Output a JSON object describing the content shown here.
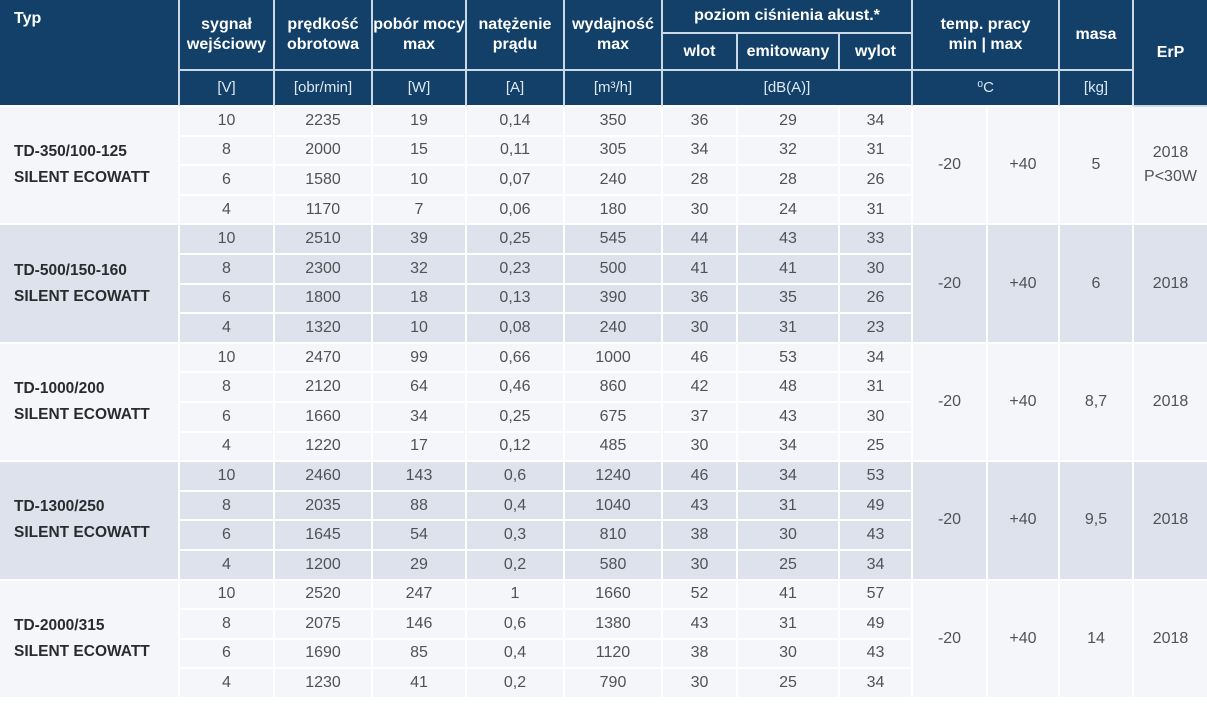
{
  "table": {
    "header": {
      "typ": "Typ",
      "signal": "sygnał wejściowy",
      "speed": "prędkość obrotowa",
      "power": "pobór mocy max",
      "current": "natężenie prądu",
      "airflow": "wydajność max",
      "acoustic": "poziom ciśnienia akust.*",
      "acoustic_sub": [
        "wlot",
        "emitowany",
        "wylot"
      ],
      "temp_line1": "temp. pracy",
      "temp_line2": "min | max",
      "masa": "masa",
      "erp": "ErP"
    },
    "units": {
      "signal": "[V]",
      "speed": "[obr/min]",
      "power": "[W]",
      "current": "[A]",
      "airflow": "[m³/h]",
      "acoustic": "[dB(A)]",
      "temp": "⁰C",
      "masa": "[kg]",
      "erp": ""
    },
    "groups": [
      {
        "model": "TD-350/100-125",
        "series": "SILENT ECOWATT",
        "temp_min": "-20",
        "temp_max": "+40",
        "masa": "5",
        "erp": [
          "2018",
          "P<30W"
        ],
        "rows": [
          [
            "10",
            "2235",
            "19",
            "0,14",
            "350",
            "36",
            "29",
            "34"
          ],
          [
            "8",
            "2000",
            "15",
            "0,11",
            "305",
            "34",
            "32",
            "31"
          ],
          [
            "6",
            "1580",
            "10",
            "0,07",
            "240",
            "28",
            "28",
            "26"
          ],
          [
            "4",
            "1170",
            "7",
            "0,06",
            "180",
            "30",
            "24",
            "31"
          ]
        ]
      },
      {
        "model": "TD-500/150-160",
        "series": "SILENT ECOWATT",
        "temp_min": "-20",
        "temp_max": "+40",
        "masa": "6",
        "erp": [
          "2018"
        ],
        "rows": [
          [
            "10",
            "2510",
            "39",
            "0,25",
            "545",
            "44",
            "43",
            "33"
          ],
          [
            "8",
            "2300",
            "32",
            "0,23",
            "500",
            "41",
            "41",
            "30"
          ],
          [
            "6",
            "1800",
            "18",
            "0,13",
            "390",
            "36",
            "35",
            "26"
          ],
          [
            "4",
            "1320",
            "10",
            "0,08",
            "240",
            "30",
            "31",
            "23"
          ]
        ]
      },
      {
        "model": "TD-1000/200",
        "series": "SILENT ECOWATT",
        "temp_min": "-20",
        "temp_max": "+40",
        "masa": "8,7",
        "erp": [
          "2018"
        ],
        "rows": [
          [
            "10",
            "2470",
            "99",
            "0,66",
            "1000",
            "46",
            "53",
            "34"
          ],
          [
            "8",
            "2120",
            "64",
            "0,46",
            "860",
            "42",
            "48",
            "31"
          ],
          [
            "6",
            "1660",
            "34",
            "0,25",
            "675",
            "37",
            "43",
            "30"
          ],
          [
            "4",
            "1220",
            "17",
            "0,12",
            "485",
            "30",
            "34",
            "25"
          ]
        ]
      },
      {
        "model": "TD-1300/250",
        "series": "SILENT ECOWATT",
        "temp_min": "-20",
        "temp_max": "+40",
        "masa": "9,5",
        "erp": [
          "2018"
        ],
        "rows": [
          [
            "10",
            "2460",
            "143",
            "0,6",
            "1240",
            "46",
            "34",
            "53"
          ],
          [
            "8",
            "2035",
            "88",
            "0,4",
            "1040",
            "43",
            "31",
            "49"
          ],
          [
            "6",
            "1645",
            "54",
            "0,3",
            "810",
            "38",
            "30",
            "43"
          ],
          [
            "4",
            "1200",
            "29",
            "0,2",
            "580",
            "30",
            "25",
            "34"
          ]
        ]
      },
      {
        "model": "TD-2000/315",
        "series": "SILENT ECOWATT",
        "temp_min": "-20",
        "temp_max": "+40",
        "masa": "14",
        "erp": [
          "2018"
        ],
        "rows": [
          [
            "10",
            "2520",
            "247",
            "1",
            "1660",
            "52",
            "41",
            "57"
          ],
          [
            "8",
            "2075",
            "146",
            "0,6",
            "1380",
            "43",
            "31",
            "49"
          ],
          [
            "6",
            "1690",
            "85",
            "0,4",
            "1120",
            "38",
            "30",
            "43"
          ],
          [
            "4",
            "1230",
            "41",
            "0,2",
            "790",
            "30",
            "25",
            "34"
          ]
        ]
      }
    ],
    "colors": {
      "header_navy": "#134069",
      "group_light": "#f4f6fa",
      "group_dark": "#dde2ed",
      "grid_line": "#ffffff",
      "header_grid_line": "#c9d9e6"
    }
  }
}
